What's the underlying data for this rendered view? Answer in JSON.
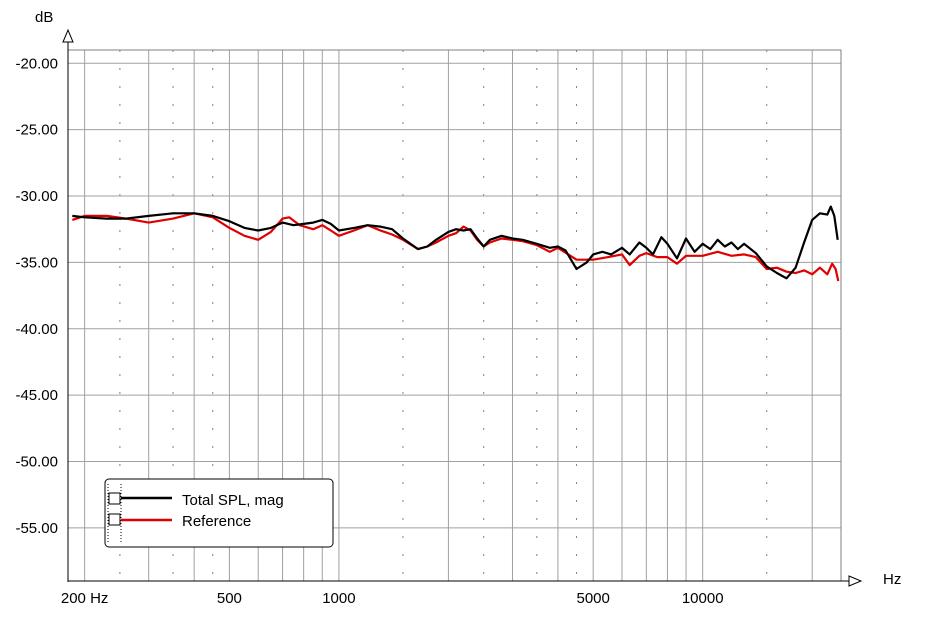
{
  "chart_data": {
    "type": "line",
    "x_scale": "log",
    "grid": true,
    "legend_placement": "bottom-left",
    "xlabel": "Hz",
    "ylabel": "dB",
    "xlim": [
      180,
      24000
    ],
    "ylim": [
      -59,
      -19
    ],
    "y_ticks": [
      {
        "value": -20,
        "label": "-20.00"
      },
      {
        "value": -25,
        "label": "-25.00"
      },
      {
        "value": -30,
        "label": "-30.00"
      },
      {
        "value": -35,
        "label": "-35.00"
      },
      {
        "value": -40,
        "label": "-40.00"
      },
      {
        "value": -45,
        "label": "-45.00"
      },
      {
        "value": -50,
        "label": "-50.00"
      },
      {
        "value": -55,
        "label": "-55.00"
      }
    ],
    "x_ticks": [
      {
        "value": 200,
        "label": "200 Hz"
      },
      {
        "value": 500,
        "label": "500"
      },
      {
        "value": 1000,
        "label": "1000"
      },
      {
        "value": 5000,
        "label": "5000"
      },
      {
        "value": 10000,
        "label": "10000"
      }
    ],
    "series": [
      {
        "name": "Total SPL, mag",
        "color": "#000000",
        "points": [
          [
            185,
            -31.5
          ],
          [
            200,
            -31.6
          ],
          [
            230,
            -31.7
          ],
          [
            260,
            -31.7
          ],
          [
            300,
            -31.5
          ],
          [
            350,
            -31.3
          ],
          [
            400,
            -31.3
          ],
          [
            450,
            -31.5
          ],
          [
            500,
            -31.9
          ],
          [
            550,
            -32.4
          ],
          [
            600,
            -32.6
          ],
          [
            650,
            -32.4
          ],
          [
            700,
            -32.0
          ],
          [
            750,
            -32.2
          ],
          [
            800,
            -32.1
          ],
          [
            850,
            -32.0
          ],
          [
            900,
            -31.8
          ],
          [
            950,
            -32.1
          ],
          [
            1000,
            -32.6
          ],
          [
            1100,
            -32.4
          ],
          [
            1200,
            -32.2
          ],
          [
            1300,
            -32.3
          ],
          [
            1400,
            -32.5
          ],
          [
            1500,
            -33.2
          ],
          [
            1650,
            -34.0
          ],
          [
            1750,
            -33.8
          ],
          [
            1850,
            -33.3
          ],
          [
            2000,
            -32.7
          ],
          [
            2100,
            -32.5
          ],
          [
            2200,
            -32.6
          ],
          [
            2300,
            -32.5
          ],
          [
            2400,
            -33.2
          ],
          [
            2500,
            -33.8
          ],
          [
            2600,
            -33.3
          ],
          [
            2800,
            -33.0
          ],
          [
            3000,
            -33.2
          ],
          [
            3200,
            -33.3
          ],
          [
            3500,
            -33.6
          ],
          [
            3800,
            -33.9
          ],
          [
            4000,
            -33.8
          ],
          [
            4200,
            -34.1
          ],
          [
            4500,
            -35.5
          ],
          [
            4800,
            -35.0
          ],
          [
            5000,
            -34.4
          ],
          [
            5300,
            -34.2
          ],
          [
            5600,
            -34.4
          ],
          [
            6000,
            -33.9
          ],
          [
            6300,
            -34.4
          ],
          [
            6700,
            -33.5
          ],
          [
            7000,
            -33.9
          ],
          [
            7300,
            -34.4
          ],
          [
            7700,
            -33.1
          ],
          [
            8000,
            -33.6
          ],
          [
            8500,
            -34.7
          ],
          [
            9000,
            -33.2
          ],
          [
            9500,
            -34.2
          ],
          [
            10000,
            -33.6
          ],
          [
            10500,
            -34.0
          ],
          [
            11000,
            -33.3
          ],
          [
            11500,
            -33.8
          ],
          [
            12000,
            -33.5
          ],
          [
            12500,
            -34.0
          ],
          [
            13000,
            -33.6
          ],
          [
            14000,
            -34.3
          ],
          [
            15000,
            -35.3
          ],
          [
            16000,
            -35.8
          ],
          [
            17000,
            -36.2
          ],
          [
            18000,
            -35.4
          ],
          [
            19000,
            -33.5
          ],
          [
            20000,
            -31.8
          ],
          [
            21000,
            -31.3
          ],
          [
            22000,
            -31.4
          ],
          [
            22500,
            -30.8
          ],
          [
            23000,
            -31.5
          ],
          [
            23500,
            -33.3
          ]
        ]
      },
      {
        "name": "Reference",
        "color": "#e00000",
        "points": [
          [
            185,
            -31.8
          ],
          [
            200,
            -31.5
          ],
          [
            230,
            -31.5
          ],
          [
            260,
            -31.7
          ],
          [
            300,
            -32.0
          ],
          [
            350,
            -31.7
          ],
          [
            400,
            -31.3
          ],
          [
            450,
            -31.6
          ],
          [
            500,
            -32.4
          ],
          [
            550,
            -33.0
          ],
          [
            600,
            -33.3
          ],
          [
            650,
            -32.7
          ],
          [
            700,
            -31.7
          ],
          [
            730,
            -31.6
          ],
          [
            780,
            -32.2
          ],
          [
            850,
            -32.5
          ],
          [
            900,
            -32.2
          ],
          [
            950,
            -32.6
          ],
          [
            1000,
            -33.0
          ],
          [
            1100,
            -32.6
          ],
          [
            1200,
            -32.2
          ],
          [
            1300,
            -32.6
          ],
          [
            1400,
            -32.9
          ],
          [
            1500,
            -33.3
          ],
          [
            1650,
            -34.0
          ],
          [
            1750,
            -33.8
          ],
          [
            1850,
            -33.5
          ],
          [
            2000,
            -33.0
          ],
          [
            2100,
            -32.8
          ],
          [
            2200,
            -32.3
          ],
          [
            2300,
            -32.6
          ],
          [
            2400,
            -33.3
          ],
          [
            2500,
            -33.8
          ],
          [
            2600,
            -33.5
          ],
          [
            2800,
            -33.2
          ],
          [
            3000,
            -33.3
          ],
          [
            3200,
            -33.4
          ],
          [
            3500,
            -33.7
          ],
          [
            3800,
            -34.2
          ],
          [
            4000,
            -33.9
          ],
          [
            4500,
            -34.8
          ],
          [
            5000,
            -34.8
          ],
          [
            5500,
            -34.6
          ],
          [
            6000,
            -34.4
          ],
          [
            6300,
            -35.2
          ],
          [
            6700,
            -34.5
          ],
          [
            7000,
            -34.3
          ],
          [
            7500,
            -34.6
          ],
          [
            8000,
            -34.6
          ],
          [
            8500,
            -35.1
          ],
          [
            9000,
            -34.5
          ],
          [
            10000,
            -34.5
          ],
          [
            11000,
            -34.2
          ],
          [
            12000,
            -34.5
          ],
          [
            13000,
            -34.4
          ],
          [
            14000,
            -34.6
          ],
          [
            15000,
            -35.5
          ],
          [
            16000,
            -35.4
          ],
          [
            17000,
            -35.7
          ],
          [
            18000,
            -35.8
          ],
          [
            19000,
            -35.6
          ],
          [
            20000,
            -35.9
          ],
          [
            21000,
            -35.4
          ],
          [
            22000,
            -35.9
          ],
          [
            22700,
            -35.1
          ],
          [
            23200,
            -35.5
          ],
          [
            23600,
            -36.4
          ]
        ]
      }
    ]
  }
}
